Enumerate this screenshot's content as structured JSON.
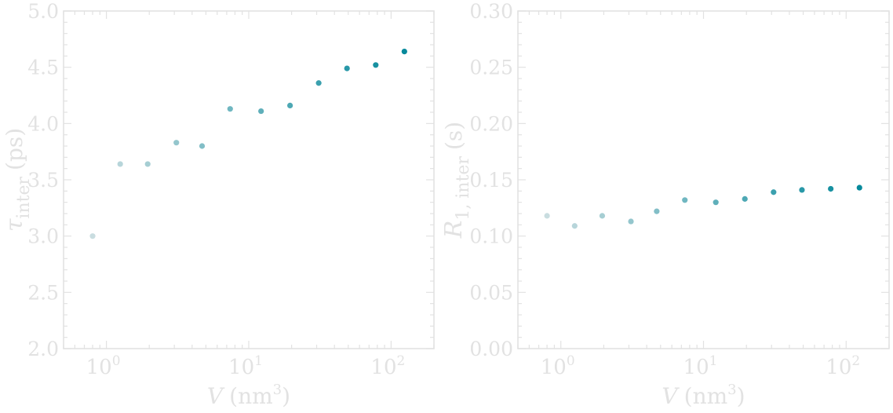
{
  "chart_data": [
    {
      "type": "scatter",
      "xscale": "log",
      "xlim": [
        0.5,
        200
      ],
      "ylim": [
        2.0,
        5.0
      ],
      "xlabel": {
        "var": "V",
        "unit": "(nm",
        "sup": "3",
        "close": ")"
      },
      "ylabel": {
        "var": "τ",
        "sub": "inter",
        "unit": "(ps)"
      },
      "x_ticks": [
        {
          "base": "10",
          "exp": "0",
          "value": 1
        },
        {
          "base": "10",
          "exp": "1",
          "value": 10
        },
        {
          "base": "10",
          "exp": "2",
          "value": 100
        }
      ],
      "y_ticks": [
        "2.0",
        "2.5",
        "3.0",
        "3.5",
        "4.0",
        "4.5",
        "5.0"
      ],
      "x": [
        0.8,
        1.25,
        1.95,
        3.1,
        4.7,
        7.4,
        12.2,
        19.5,
        31,
        49,
        78,
        124
      ],
      "y": [
        3.0,
        3.64,
        3.64,
        3.83,
        3.8,
        4.13,
        4.11,
        4.16,
        4.36,
        4.49,
        4.52,
        4.64
      ]
    },
    {
      "type": "scatter",
      "xscale": "log",
      "xlim": [
        0.5,
        200
      ],
      "ylim": [
        0.0,
        0.3
      ],
      "xlabel": {
        "var": "V",
        "unit": "(nm",
        "sup": "3",
        "close": ")"
      },
      "ylabel": {
        "var": "R",
        "sub": "1, inter",
        "unit": "(s)"
      },
      "x_ticks": [
        {
          "base": "10",
          "exp": "0",
          "value": 1
        },
        {
          "base": "10",
          "exp": "1",
          "value": 10
        },
        {
          "base": "10",
          "exp": "2",
          "value": 100
        }
      ],
      "y_ticks": [
        "0.00",
        "0.05",
        "0.10",
        "0.15",
        "0.20",
        "0.25",
        "0.30"
      ],
      "x": [
        0.8,
        1.25,
        1.95,
        3.1,
        4.7,
        7.4,
        12.2,
        19.5,
        31,
        49,
        78,
        124
      ],
      "y": [
        0.118,
        0.109,
        0.118,
        0.113,
        0.122,
        0.132,
        0.13,
        0.133,
        0.139,
        0.141,
        0.142,
        0.143
      ]
    }
  ],
  "colors": {
    "frame": "#e2e2e2",
    "point_light": "#c9dde0",
    "point_dark": "#06899b"
  }
}
